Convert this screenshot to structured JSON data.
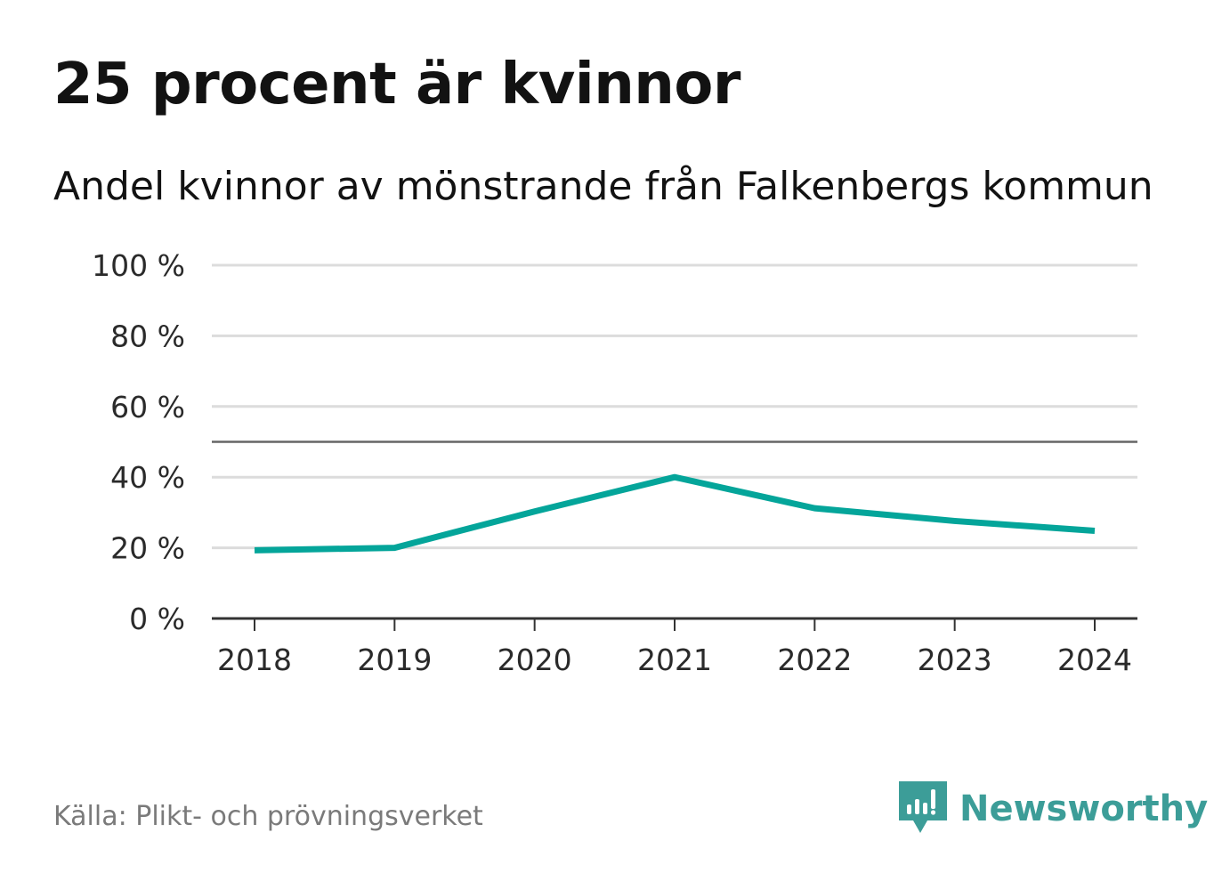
{
  "header": {
    "title": "25 procent är kvinnor",
    "subtitle": "Andel kvinnor av mönstrande från Falkenbergs kommun"
  },
  "footer": {
    "source": "Källa: Plikt- och prövningsverket",
    "brand": "Newsworthy"
  },
  "colors": {
    "series": "#04a59a",
    "grid": "#dcdcdc",
    "axis": "#333333",
    "reference": "#666666",
    "brand": "#3c9d98"
  },
  "chart_data": {
    "type": "line",
    "title": "25 procent är kvinnor",
    "subtitle": "Andel kvinnor av mönstrande från Falkenbergs kommun",
    "xlabel": "",
    "ylabel": "",
    "categories": [
      "2018",
      "2019",
      "2020",
      "2021",
      "2022",
      "2023",
      "2024"
    ],
    "series": [
      {
        "name": "Andel kvinnor",
        "values": [
          19.3,
          20,
          30.3,
          40,
          31.2,
          27.6,
          24.8
        ]
      }
    ],
    "ylim": [
      0,
      100
    ],
    "yticks": [
      0,
      20,
      40,
      60,
      80,
      100
    ],
    "ytick_labels": [
      "0 %",
      "20 %",
      "40 %",
      "60 %",
      "80 %",
      "100 %"
    ],
    "reference_line": 50,
    "grid": true,
    "legend": "none"
  }
}
